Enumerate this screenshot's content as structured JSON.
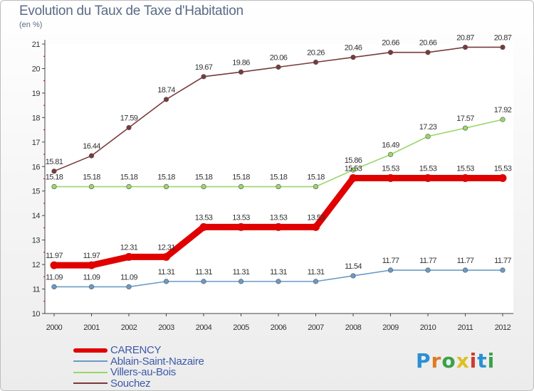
{
  "header": {
    "title": "Evolution du Taux de Taxe d'Habitation",
    "unit": "(en %)"
  },
  "brand": {
    "text": "Proxiti",
    "letter_colors": [
      "#2b8fd4",
      "#e07a1f",
      "#3aa14a",
      "#e0c020",
      "#d03a2a",
      "#2b8fd4",
      "#3aa14a"
    ]
  },
  "chart_data": {
    "type": "line",
    "title": "Evolution du Taux de Taxe d'Habitation",
    "ylabel": "(en %)",
    "xlabel": "",
    "x": [
      "2000",
      "2001",
      "2002",
      "2003",
      "2004",
      "2005",
      "2006",
      "2007",
      "2008",
      "2009",
      "2010",
      "2011",
      "2012"
    ],
    "ylim": [
      10,
      21
    ],
    "yticks": [
      "10",
      "11",
      "12",
      "13",
      "14",
      "15",
      "16",
      "17",
      "18",
      "19",
      "20",
      "21"
    ],
    "grid": false,
    "legend_position": "bottom-left",
    "series": [
      {
        "name": "CARENCY",
        "color": "#e00000",
        "values": [
          11.97,
          11.97,
          12.31,
          12.31,
          13.53,
          13.53,
          13.53,
          13.53,
          15.53,
          15.53,
          15.53,
          15.53,
          15.53
        ],
        "labels": [
          "11.97",
          "11.97",
          "12.31",
          "12.31",
          "13.53",
          "13.53",
          "13.53",
          "13.53",
          "15.53",
          "15.53",
          "15.53",
          "15.53",
          "15.53"
        ]
      },
      {
        "name": "Ablain-Saint-Nazaire",
        "color": "#6a9bc7",
        "values": [
          11.09,
          11.09,
          11.09,
          11.31,
          11.31,
          11.31,
          11.31,
          11.31,
          11.54,
          11.77,
          11.77,
          11.77,
          11.77
        ],
        "labels": [
          "11.09",
          "11.09",
          "11.09",
          "11.31",
          "11.31",
          "11.31",
          "11.31",
          "11.31",
          "11.54",
          "11.77",
          "11.77",
          "11.77",
          "11.77"
        ]
      },
      {
        "name": "Villers-au-Bois",
        "color": "#9ad76a",
        "values": [
          15.18,
          15.18,
          15.18,
          15.18,
          15.18,
          15.18,
          15.18,
          15.18,
          15.86,
          16.49,
          17.23,
          17.57,
          17.92
        ],
        "labels": [
          "15.18",
          "15.18",
          "15.18",
          "15.18",
          "15.18",
          "15.18",
          "15.18",
          "15.18",
          "15.86",
          "16.49",
          "17.23",
          "17.57",
          "17.92"
        ]
      },
      {
        "name": "Souchez",
        "color": "#7a3a3a",
        "values": [
          15.81,
          16.44,
          17.59,
          18.74,
          19.67,
          19.86,
          20.06,
          20.26,
          20.46,
          20.66,
          20.66,
          20.87,
          20.87
        ],
        "labels": [
          "15.81",
          "16.44",
          "17.59",
          "18.74",
          "19.67",
          "19.86",
          "20.06",
          "20.26",
          "20.46",
          "20.66",
          "20.66",
          "20.87",
          "20.87"
        ]
      }
    ]
  }
}
